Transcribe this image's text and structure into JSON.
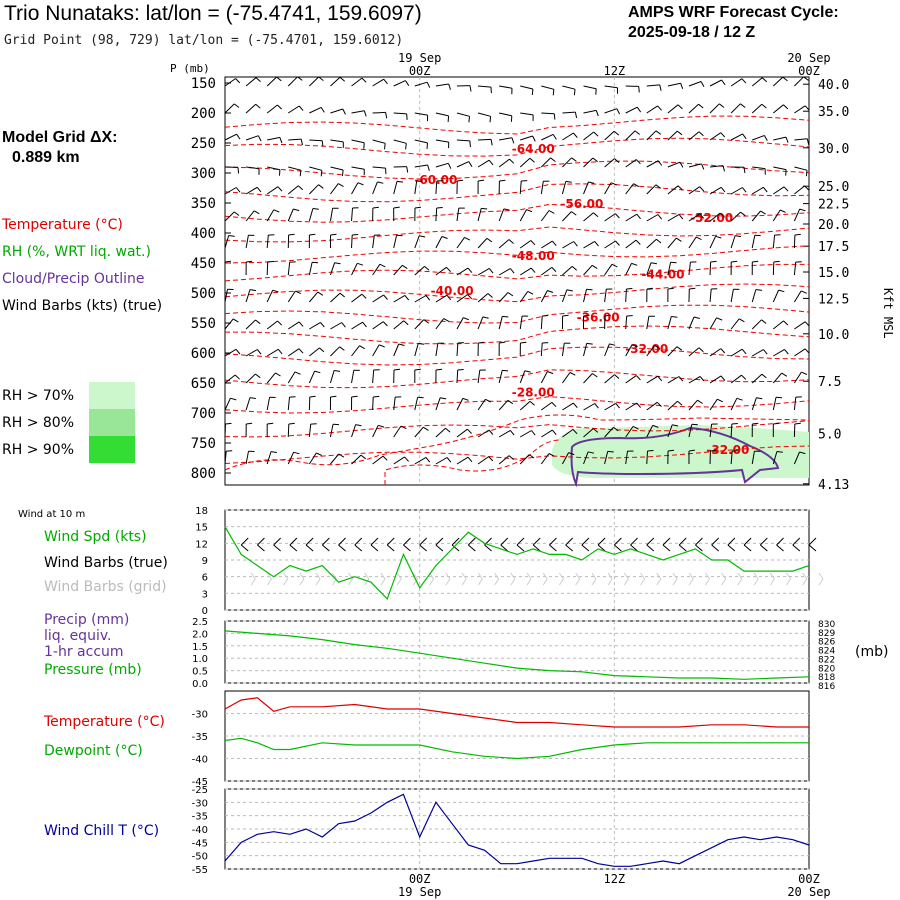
{
  "header": {
    "title": "Trio Nunataks:  lat/lon = (-75.4741, 159.6097)",
    "subtitle": "Grid Point (98, 729) lat/lon = (-75.4701, 159.6012)",
    "cycle_line1": "AMPS WRF Forecast Cycle:",
    "cycle_line2": "2025-09-18 / 12  Z"
  },
  "time_axis": {
    "top_dates": [
      "19 Sep",
      "20 Sep"
    ],
    "ticks": [
      "00Z",
      "12Z",
      "00Z"
    ],
    "bottom_dates": [
      "19 Sep",
      "20 Sep"
    ]
  },
  "grid_info": {
    "line1": "Model Grid ΔX:",
    "line2": "0.889 km"
  },
  "legend": {
    "temperature": "Temperature (°C)",
    "rh": "RH (%, WRT liq. wat.)",
    "cloud": "Cloud/Precip Outline",
    "barbs": "Wind Barbs (kts) (true)",
    "rh70": "RH > 70%",
    "rh80": "RH > 80%",
    "rh90": "RH > 90%",
    "colors": {
      "rh70": "#ccf7cc",
      "rh80": "#99e699",
      "rh90": "#33dd33",
      "temp": "#ee0000",
      "cloud": "#663399"
    }
  },
  "chart_data": [
    {
      "type": "line",
      "name": "profile",
      "ylabel": "P (mb)",
      "right_label": "Kft MSL",
      "pressure_ticks": [
        150,
        200,
        250,
        300,
        350,
        400,
        450,
        500,
        550,
        600,
        650,
        700,
        750,
        800
      ],
      "height_ticks": [
        "40.0",
        "35.0",
        "30.0",
        "25.0",
        "22.5",
        "20.0",
        "17.5",
        "15.0",
        "12.5",
        "10.0",
        "7.5",
        "5.0",
        "4.13"
      ],
      "height_tick_pressure": [
        152,
        197,
        258,
        322,
        351,
        385,
        422,
        465,
        509,
        568,
        647,
        734,
        818
      ],
      "isotherm_labels": [
        "-64.00",
        "-60.00",
        "-56.00",
        "-52.00",
        "-48.00",
        "-44.00",
        "-40.00",
        "-36.00",
        "-32.00",
        "-28.00",
        "-32.00"
      ],
      "isotherm_label_hour": [
        7,
        1,
        10,
        18,
        7,
        15,
        2,
        11,
        14,
        7,
        19
      ],
      "isotherm_label_pressure": [
        260,
        312,
        352,
        375,
        438,
        469,
        497,
        541,
        593,
        666,
        762
      ]
    },
    {
      "type": "line",
      "name": "wind",
      "caption": "Wind at 10 m",
      "labels": [
        "Wind Spd (kts)",
        "Wind Barbs (true)",
        "Wind Barbs (grid)"
      ],
      "yticks": [
        0,
        3,
        6,
        9,
        12,
        15,
        18
      ],
      "ylim": [
        0,
        18
      ],
      "x": [
        -12,
        -11,
        -10,
        -9,
        -8,
        -7,
        -6,
        -5,
        -4,
        -3,
        -2,
        -1,
        0,
        1,
        2,
        3,
        4,
        5,
        6,
        7,
        8,
        9,
        10,
        11,
        12,
        13,
        14,
        15,
        16,
        17,
        18,
        19,
        20,
        21,
        22,
        23,
        24
      ],
      "values": [
        15,
        10,
        8,
        6,
        8,
        7,
        8,
        5,
        6,
        5,
        2,
        10,
        4,
        8,
        11,
        14,
        12,
        11,
        10,
        11,
        10,
        10,
        9,
        11,
        10,
        11,
        10,
        9,
        10,
        11,
        9,
        9,
        7,
        7,
        7,
        7,
        8
      ]
    },
    {
      "type": "line",
      "name": "pressure",
      "labels": [
        "Precip (mm)",
        "liq. equiv.",
        "1-hr accum",
        "Pressure (mb)"
      ],
      "right_label": "(mb)",
      "yticks": [
        "0.0",
        "0.5",
        "1.0",
        "1.5",
        "2.0",
        "2.5"
      ],
      "ylim": [
        0,
        2.5
      ],
      "right_ticks": [
        "830",
        "829",
        "826",
        "824",
        "822",
        "820",
        "818",
        "816"
      ],
      "x": [
        -12,
        -10,
        -8,
        -6,
        -4,
        -2,
        0,
        2,
        4,
        6,
        8,
        10,
        12,
        14,
        16,
        18,
        20,
        22,
        24
      ],
      "values": [
        2.1,
        2.0,
        1.9,
        1.75,
        1.55,
        1.4,
        1.2,
        1.0,
        0.8,
        0.6,
        0.5,
        0.45,
        0.3,
        0.25,
        0.2,
        0.2,
        0.15,
        0.2,
        0.25
      ]
    },
    {
      "type": "line",
      "name": "temperature",
      "labels": [
        "Temperature (°C)",
        "Dewpoint (°C)"
      ],
      "yticks": [
        -30,
        -35,
        -40,
        -45
      ],
      "ylim": [
        -45,
        -25
      ],
      "x": [
        -12,
        -11,
        -10,
        -9,
        -8,
        -6,
        -4,
        -2,
        0,
        2,
        4,
        6,
        8,
        10,
        12,
        14,
        16,
        18,
        20,
        22,
        24
      ],
      "temperature": [
        -29,
        -27,
        -26.5,
        -29.5,
        -28.5,
        -28.5,
        -28,
        -29,
        -29,
        -30,
        -31,
        -32,
        -32,
        -32.5,
        -33,
        -33,
        -33,
        -32.5,
        -32.5,
        -33,
        -33
      ],
      "dewpoint": [
        -36,
        -35.5,
        -36.5,
        -38,
        -38,
        -36.5,
        -37,
        -37,
        -37,
        -38.5,
        -39.5,
        -40,
        -39.5,
        -38,
        -37,
        -36.5,
        -36.5,
        -36.5,
        -36.5,
        -36.5,
        -36.5
      ]
    },
    {
      "type": "line",
      "name": "windchill",
      "labels": [
        "Wind Chill T (°C)"
      ],
      "yticks": [
        -25,
        -30,
        -35,
        -40,
        -45,
        -50,
        -55
      ],
      "ylim": [
        -55,
        -25
      ],
      "x": [
        -12,
        -11,
        -10,
        -9,
        -8,
        -7,
        -6,
        -5,
        -4,
        -3,
        -2,
        -1,
        0,
        1,
        2,
        3,
        4,
        5,
        6,
        7,
        8,
        9,
        10,
        11,
        12,
        13,
        14,
        15,
        16,
        17,
        18,
        19,
        20,
        21,
        22,
        23,
        24
      ],
      "values": [
        -52,
        -45,
        -42,
        -41,
        -42,
        -40,
        -43,
        -38,
        -37,
        -34,
        -30,
        -27,
        -43,
        -30,
        -38,
        -46,
        -48,
        -53,
        -53,
        -52,
        -51,
        -51,
        -51,
        -53,
        -54,
        -54,
        -53,
        -52,
        -53,
        -50,
        -47,
        -44,
        -43,
        -44,
        -43,
        -44,
        -46
      ]
    }
  ]
}
